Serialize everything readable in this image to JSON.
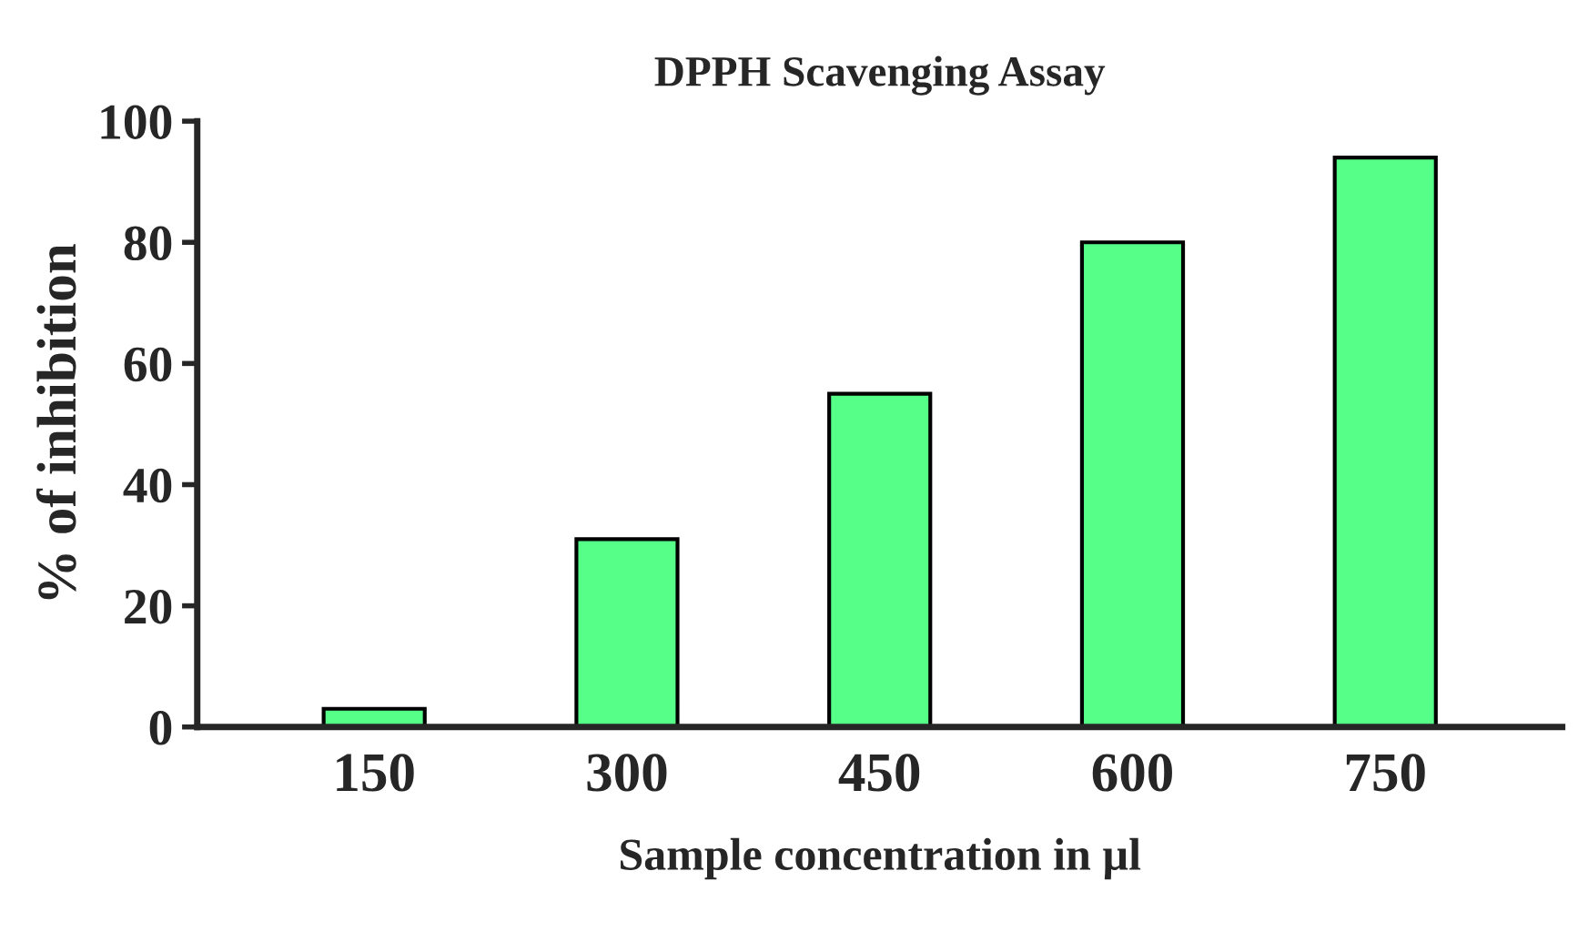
{
  "chart_data": {
    "type": "bar",
    "title": "DPPH Scavenging Assay",
    "xlabel": "Sample concentration in µl",
    "ylabel": "% of inhibition",
    "categories": [
      "150",
      "300",
      "450",
      "600",
      "750"
    ],
    "values": [
      3,
      31,
      55,
      80,
      94
    ],
    "color": "#55ff88",
    "ylim": [
      0,
      100
    ],
    "yticks": [
      0,
      20,
      40,
      60,
      80,
      100
    ],
    "grid": false,
    "legend": false
  }
}
